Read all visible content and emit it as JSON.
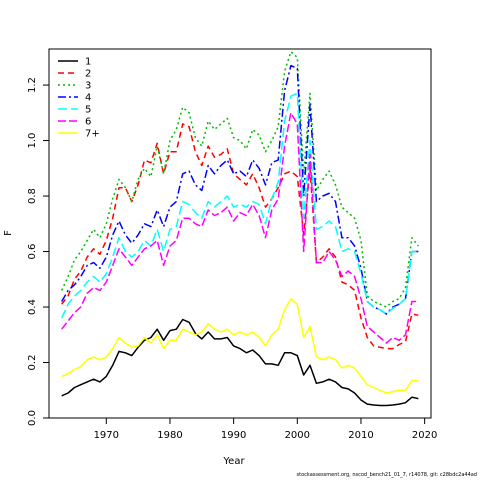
{
  "chart_data": {
    "type": "line",
    "title": "",
    "xlabel": "Year",
    "ylabel": "F",
    "xlim": [
      1961,
      2021
    ],
    "ylim": [
      0,
      1.33
    ],
    "xticks": [
      1970,
      1980,
      1990,
      2000,
      2010,
      2020
    ],
    "yticks": [
      0.0,
      0.2,
      0.4,
      0.6,
      0.8,
      1.0,
      1.2
    ],
    "grid": false,
    "legend_position": "top-left",
    "x": [
      1963,
      1964,
      1965,
      1966,
      1967,
      1968,
      1969,
      1970,
      1971,
      1972,
      1973,
      1974,
      1975,
      1976,
      1977,
      1978,
      1979,
      1980,
      1981,
      1982,
      1983,
      1984,
      1985,
      1986,
      1987,
      1988,
      1989,
      1990,
      1991,
      1992,
      1993,
      1994,
      1995,
      1996,
      1997,
      1998,
      1999,
      2000,
      2001,
      2002,
      2003,
      2004,
      2005,
      2006,
      2007,
      2008,
      2009,
      2010,
      2011,
      2012,
      2013,
      2014,
      2015,
      2016,
      2017,
      2018,
      2019
    ],
    "series": [
      {
        "name": "1",
        "color": "#000000",
        "dash": "solid",
        "values": [
          0.08,
          0.09,
          0.11,
          0.12,
          0.13,
          0.14,
          0.13,
          0.15,
          0.19,
          0.24,
          0.235,
          0.225,
          0.255,
          0.28,
          0.29,
          0.32,
          0.28,
          0.315,
          0.32,
          0.355,
          0.345,
          0.305,
          0.285,
          0.31,
          0.285,
          0.285,
          0.29,
          0.26,
          0.25,
          0.235,
          0.245,
          0.225,
          0.195,
          0.195,
          0.19,
          0.235,
          0.235,
          0.225,
          0.155,
          0.19,
          0.125,
          0.13,
          0.14,
          0.13,
          0.11,
          0.105,
          0.09,
          0.065,
          0.05,
          0.047,
          0.045,
          0.045,
          0.047,
          0.05,
          0.055,
          0.075,
          0.07
        ]
      },
      {
        "name": "2",
        "color": "#ff0000",
        "dash": "6,4",
        "values": [
          0.41,
          0.44,
          0.5,
          0.53,
          0.58,
          0.61,
          0.59,
          0.64,
          0.72,
          0.83,
          0.83,
          0.78,
          0.84,
          0.93,
          0.92,
          0.99,
          0.88,
          0.96,
          0.96,
          1.06,
          1.05,
          0.96,
          0.91,
          0.98,
          0.94,
          0.95,
          0.97,
          0.88,
          0.86,
          0.84,
          0.88,
          0.83,
          0.76,
          0.79,
          0.83,
          0.88,
          0.89,
          0.87,
          0.66,
          0.9,
          0.56,
          0.58,
          0.61,
          0.58,
          0.49,
          0.48,
          0.46,
          0.36,
          0.29,
          0.26,
          0.255,
          0.25,
          0.25,
          0.265,
          0.275,
          0.375,
          0.37
        ]
      },
      {
        "name": "3",
        "color": "#00bb00",
        "dash": "2,3",
        "values": [
          0.46,
          0.51,
          0.57,
          0.6,
          0.64,
          0.68,
          0.65,
          0.7,
          0.79,
          0.86,
          0.83,
          0.78,
          0.86,
          0.9,
          0.87,
          0.98,
          0.88,
          1.0,
          1.04,
          1.12,
          1.1,
          1.01,
          0.98,
          1.07,
          1.04,
          1.06,
          1.08,
          1.01,
          1.0,
          0.97,
          1.04,
          1.02,
          0.96,
          1.0,
          1.05,
          1.25,
          1.32,
          1.3,
          0.88,
          1.17,
          0.82,
          0.86,
          0.89,
          0.84,
          0.76,
          0.74,
          0.72,
          0.64,
          0.44,
          0.42,
          0.41,
          0.4,
          0.42,
          0.43,
          0.47,
          0.65,
          0.62
        ]
      },
      {
        "name": "4",
        "color": "#0000ff",
        "dash": "8,3,2,3",
        "values": [
          0.42,
          0.46,
          0.48,
          0.51,
          0.55,
          0.56,
          0.54,
          0.58,
          0.66,
          0.71,
          0.66,
          0.63,
          0.66,
          0.7,
          0.69,
          0.75,
          0.69,
          0.76,
          0.78,
          0.88,
          0.89,
          0.84,
          0.82,
          0.91,
          0.88,
          0.91,
          0.93,
          0.88,
          0.89,
          0.87,
          0.93,
          0.9,
          0.84,
          0.92,
          0.93,
          1.18,
          1.27,
          1.26,
          0.8,
          1.13,
          0.78,
          0.8,
          0.81,
          0.78,
          0.65,
          0.65,
          0.62,
          0.54,
          0.42,
          0.4,
          0.39,
          0.375,
          0.4,
          0.41,
          0.43,
          0.6,
          0.6
        ]
      },
      {
        "name": "5",
        "color": "#00ffff",
        "dash": "9,4",
        "values": [
          0.36,
          0.41,
          0.44,
          0.46,
          0.49,
          0.51,
          0.49,
          0.52,
          0.58,
          0.65,
          0.6,
          0.58,
          0.6,
          0.64,
          0.62,
          0.68,
          0.6,
          0.68,
          0.69,
          0.78,
          0.77,
          0.74,
          0.72,
          0.78,
          0.76,
          0.78,
          0.8,
          0.76,
          0.77,
          0.76,
          0.78,
          0.77,
          0.7,
          0.79,
          0.85,
          1.07,
          1.16,
          1.17,
          0.72,
          1.0,
          0.68,
          0.69,
          0.71,
          0.69,
          0.6,
          0.61,
          0.6,
          0.52,
          0.42,
          0.4,
          0.39,
          0.375,
          0.395,
          0.41,
          0.43,
          0.6,
          0.6
        ]
      },
      {
        "name": "6",
        "color": "#ff00ff",
        "dash": "8,3",
        "values": [
          0.32,
          0.35,
          0.38,
          0.4,
          0.45,
          0.47,
          0.46,
          0.49,
          0.55,
          0.61,
          0.58,
          0.55,
          0.58,
          0.61,
          0.62,
          0.64,
          0.55,
          0.62,
          0.64,
          0.72,
          0.72,
          0.7,
          0.69,
          0.75,
          0.73,
          0.74,
          0.76,
          0.71,
          0.74,
          0.73,
          0.77,
          0.73,
          0.65,
          0.75,
          0.79,
          0.98,
          1.1,
          1.06,
          0.6,
          0.95,
          0.56,
          0.56,
          0.6,
          0.57,
          0.51,
          0.53,
          0.51,
          0.43,
          0.33,
          0.31,
          0.29,
          0.27,
          0.29,
          0.28,
          0.3,
          0.42,
          0.42
        ]
      },
      {
        "name": "7+",
        "color": "#ffff00",
        "dash": "solid",
        "values": [
          0.15,
          0.16,
          0.175,
          0.185,
          0.21,
          0.22,
          0.21,
          0.22,
          0.25,
          0.29,
          0.27,
          0.255,
          0.26,
          0.29,
          0.27,
          0.3,
          0.25,
          0.28,
          0.28,
          0.32,
          0.31,
          0.3,
          0.31,
          0.34,
          0.32,
          0.31,
          0.32,
          0.3,
          0.31,
          0.3,
          0.31,
          0.29,
          0.26,
          0.3,
          0.32,
          0.39,
          0.43,
          0.41,
          0.29,
          0.33,
          0.22,
          0.21,
          0.22,
          0.21,
          0.18,
          0.19,
          0.18,
          0.15,
          0.12,
          0.11,
          0.1,
          0.09,
          0.095,
          0.1,
          0.1,
          0.135,
          0.135
        ]
      }
    ]
  },
  "footer": "stockassessment.org, nscod_bench21_01_7, r14078, git: c28bdc2a44ad"
}
